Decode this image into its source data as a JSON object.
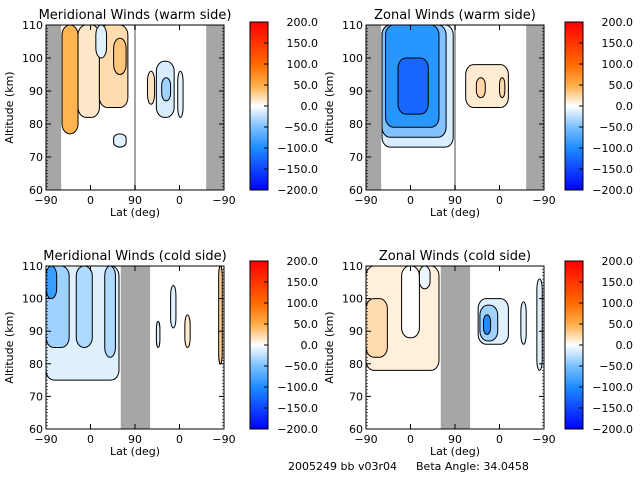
{
  "footer": {
    "id_text": "2005249 bb v03r04",
    "beta_text": "Beta Angle: 34.0458"
  },
  "chart_data": [
    {
      "type": "heatmap",
      "title": "Meridional Winds (warm side)",
      "xlabel": "Lat (deg)",
      "ylabel": "Altitude (km)",
      "xticks": [
        "-90",
        "0",
        "90",
        "0",
        "-90"
      ],
      "yticks": [
        "60",
        "70",
        "80",
        "90",
        "100",
        "110"
      ],
      "ylim": [
        60,
        110
      ],
      "colorbar": {
        "ticks": [
          "200.0",
          "150.0",
          "100.0",
          "50.0",
          "0.0",
          "-50.0",
          "-100.0",
          "-150.0",
          "-200.0"
        ],
        "range": [
          -200,
          200
        ]
      },
      "gaps": [
        [
          0,
          0.085
        ],
        [
          0.9,
          1.0
        ]
      ],
      "separator": 0.5,
      "regions": [
        {
          "x": 0.09,
          "w": 0.09,
          "y0": 77,
          "y1": 110,
          "v": 90
        },
        {
          "x": 0.18,
          "w": 0.12,
          "y0": 82,
          "y1": 110,
          "v": 30
        },
        {
          "x": 0.3,
          "w": 0.16,
          "y0": 85,
          "y1": 110,
          "v": 45
        },
        {
          "x": 0.38,
          "w": 0.07,
          "y0": 95,
          "y1": 106,
          "v": 70
        },
        {
          "x": 0.28,
          "w": 0.06,
          "y0": 100,
          "y1": 110,
          "v": -25
        },
        {
          "x": 0.38,
          "w": 0.07,
          "y0": 73,
          "y1": 77,
          "v": -25
        },
        {
          "x": 0.57,
          "w": 0.04,
          "y0": 86,
          "y1": 96,
          "v": 35
        },
        {
          "x": 0.62,
          "w": 0.1,
          "y0": 82,
          "y1": 99,
          "v": -30
        },
        {
          "x": 0.65,
          "w": 0.05,
          "y0": 87,
          "y1": 94,
          "v": -60
        },
        {
          "x": 0.74,
          "w": 0.03,
          "y0": 82,
          "y1": 96,
          "v": -20
        }
      ]
    },
    {
      "type": "heatmap",
      "title": "Zonal Winds (warm side)",
      "xlabel": "Lat (deg)",
      "ylabel": "Altitude (km)",
      "xticks": [
        "-90",
        "0",
        "90",
        "0",
        "-90"
      ],
      "yticks": [
        "60",
        "70",
        "80",
        "90",
        "100",
        "110"
      ],
      "ylim": [
        60,
        110
      ],
      "colorbar": {
        "ticks": [
          "200.0",
          "150.0",
          "100.0",
          "50.0",
          "0.0",
          "-50.0",
          "-100.0",
          "-150.0",
          "-200.0"
        ],
        "range": [
          -200,
          200
        ]
      },
      "gaps": [
        [
          0,
          0.085
        ],
        [
          0.9,
          1.0
        ]
      ],
      "separator": 0.5,
      "regions": [
        {
          "x": 0.09,
          "w": 0.4,
          "y0": 73,
          "y1": 110,
          "v": -30
        },
        {
          "x": 0.09,
          "w": 0.36,
          "y0": 76,
          "y1": 110,
          "v": -70
        },
        {
          "x": 0.11,
          "w": 0.3,
          "y0": 79,
          "y1": 110,
          "v": -100
        },
        {
          "x": 0.18,
          "w": 0.17,
          "y0": 83,
          "y1": 100,
          "v": -140
        },
        {
          "x": 0.56,
          "w": 0.24,
          "y0": 85,
          "y1": 98,
          "v": 25
        },
        {
          "x": 0.62,
          "w": 0.05,
          "y0": 88,
          "y1": 94,
          "v": 50
        },
        {
          "x": 0.75,
          "w": 0.03,
          "y0": 88,
          "y1": 94,
          "v": 50
        }
      ]
    },
    {
      "type": "heatmap",
      "title": "Meridional Winds (cold side)",
      "xlabel": "Lat (deg)",
      "ylabel": "Altitude (km)",
      "xticks": [
        "-90",
        "0",
        "90",
        "0",
        "-90"
      ],
      "yticks": [
        "60",
        "70",
        "80",
        "90",
        "100",
        "110"
      ],
      "ylim": [
        60,
        110
      ],
      "colorbar": {
        "ticks": [
          "200.0",
          "150.0",
          "100.0",
          "50.0",
          "0.0",
          "-50.0",
          "-100.0",
          "-150.0",
          "-200.0"
        ],
        "range": [
          -200,
          200
        ]
      },
      "gaps": [
        [
          0.42,
          0.585
        ]
      ],
      "separator": null,
      "regions": [
        {
          "x": 0.0,
          "w": 0.41,
          "y0": 75,
          "y1": 110,
          "v": -25
        },
        {
          "x": 0.0,
          "w": 0.13,
          "y0": 85,
          "y1": 110,
          "v": -60
        },
        {
          "x": 0.0,
          "w": 0.06,
          "y0": 100,
          "y1": 110,
          "v": -95
        },
        {
          "x": 0.17,
          "w": 0.09,
          "y0": 85,
          "y1": 110,
          "v": -55
        },
        {
          "x": 0.33,
          "w": 0.06,
          "y0": 82,
          "y1": 110,
          "v": -55
        },
        {
          "x": 0.7,
          "w": 0.03,
          "y0": 91,
          "y1": 104,
          "v": -25
        },
        {
          "x": 0.62,
          "w": 0.02,
          "y0": 85,
          "y1": 93,
          "v": -25
        },
        {
          "x": 0.78,
          "w": 0.03,
          "y0": 85,
          "y1": 95,
          "v": 25
        },
        {
          "x": 0.97,
          "w": 0.02,
          "y0": 80,
          "y1": 110,
          "v": 60
        }
      ]
    },
    {
      "type": "heatmap",
      "title": "Zonal Winds (cold side)",
      "xlabel": "Lat (deg)",
      "ylabel": "Altitude (km)",
      "xticks": [
        "-90",
        "0",
        "90",
        "0",
        "-90"
      ],
      "yticks": [
        "60",
        "70",
        "80",
        "90",
        "100",
        "110"
      ],
      "ylim": [
        60,
        110
      ],
      "colorbar": {
        "ticks": [
          "200.0",
          "150.0",
          "100.0",
          "50.0",
          "0.0",
          "-50.0",
          "-100.0",
          "-150.0",
          "-200.0"
        ],
        "range": [
          -200,
          200
        ]
      },
      "gaps": [
        [
          0.42,
          0.585
        ]
      ],
      "separator": null,
      "regions": [
        {
          "x": 0.0,
          "w": 0.41,
          "y0": 78,
          "y1": 110,
          "v": 20
        },
        {
          "x": 0.0,
          "w": 0.12,
          "y0": 82,
          "y1": 100,
          "v": 45
        },
        {
          "x": 0.2,
          "w": 0.1,
          "y0": 88,
          "y1": 110,
          "v": 0
        },
        {
          "x": 0.3,
          "w": 0.06,
          "y0": 103,
          "y1": 110,
          "v": -15
        },
        {
          "x": 0.63,
          "w": 0.17,
          "y0": 86,
          "y1": 100,
          "v": -25
        },
        {
          "x": 0.64,
          "w": 0.1,
          "y0": 87,
          "y1": 98,
          "v": -60
        },
        {
          "x": 0.66,
          "w": 0.04,
          "y0": 89,
          "y1": 95,
          "v": -110
        },
        {
          "x": 0.87,
          "w": 0.03,
          "y0": 86,
          "y1": 99,
          "v": -25
        },
        {
          "x": 0.96,
          "w": 0.03,
          "y0": 78,
          "y1": 106,
          "v": -25
        }
      ]
    }
  ]
}
